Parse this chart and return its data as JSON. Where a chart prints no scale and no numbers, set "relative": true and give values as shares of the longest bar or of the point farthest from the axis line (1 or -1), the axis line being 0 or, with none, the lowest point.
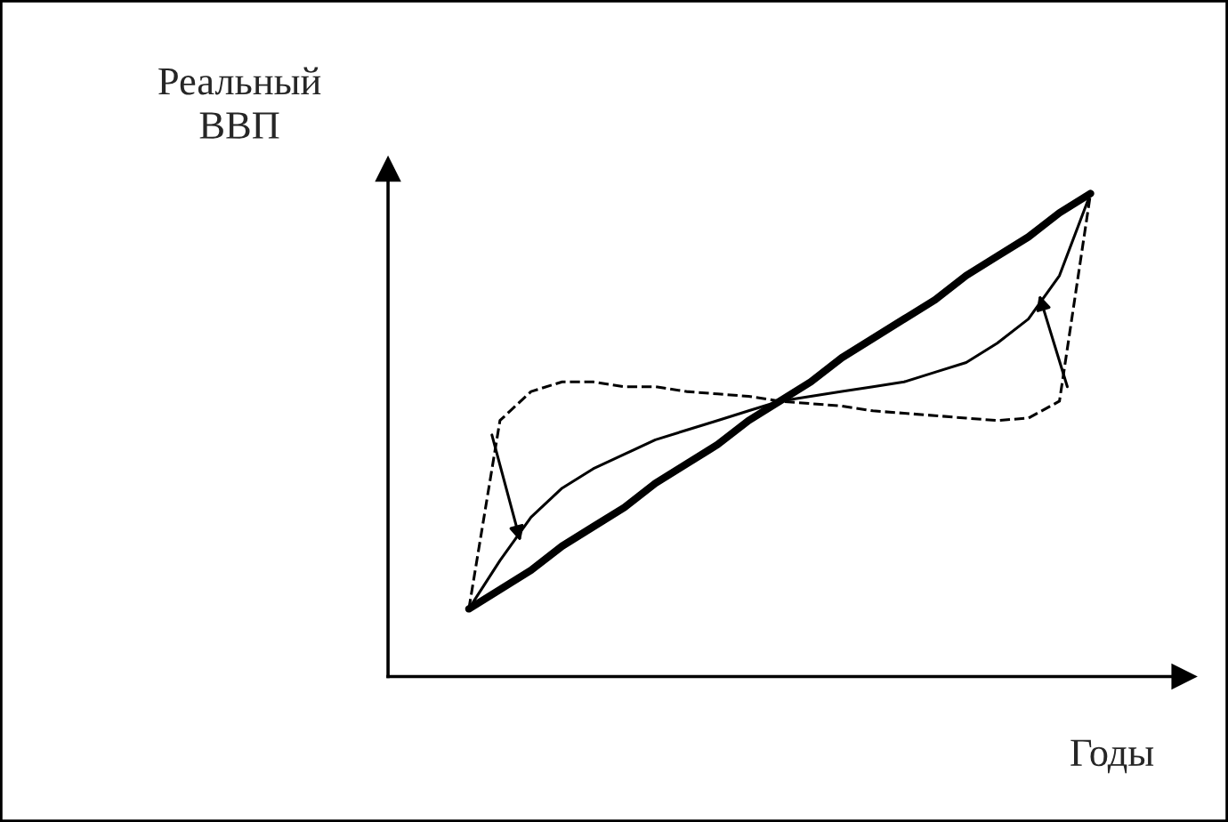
{
  "chart_data": {
    "type": "line",
    "relative": true,
    "xlabel": "Годы",
    "ylabel": "Реальный\nВВП",
    "categories": [
      null,
      null,
      null,
      null,
      null,
      null,
      null,
      null,
      null,
      null,
      null,
      null,
      null,
      null,
      null,
      null,
      null,
      null,
      null,
      null,
      null
    ],
    "series": [
      {
        "color": "#000000",
        "line_style": "solid",
        "values": [
          0.14,
          0.18,
          0.22,
          0.27,
          0.31,
          0.35,
          0.4,
          0.44,
          0.48,
          0.53,
          0.57,
          0.61,
          0.66,
          0.7,
          0.74,
          0.78,
          0.83,
          0.87,
          0.91,
          0.96,
          1.0
        ]
      },
      {
        "color": "#000000",
        "line_style": "dashed",
        "values": [
          0.14,
          0.53,
          0.59,
          0.61,
          0.61,
          0.6,
          0.6,
          0.59,
          0.585,
          0.58,
          0.57,
          0.565,
          0.56,
          0.55,
          0.545,
          0.54,
          0.535,
          0.53,
          0.535,
          0.57,
          1.0
        ]
      },
      {
        "color": "#000000",
        "line_style": "solid",
        "values": [
          0.14,
          0.24,
          0.33,
          0.39,
          0.43,
          0.46,
          0.49,
          0.51,
          0.53,
          0.55,
          0.57,
          0.58,
          0.59,
          0.6,
          0.61,
          0.63,
          0.65,
          0.69,
          0.74,
          0.83,
          1.0
        ]
      }
    ],
    "grid": false,
    "legend": false,
    "marker": "none"
  }
}
